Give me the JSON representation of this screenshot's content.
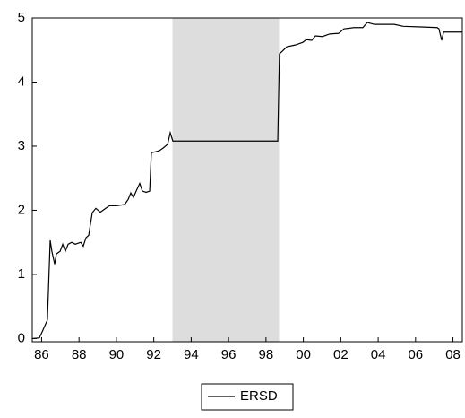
{
  "chart_data": {
    "type": "line",
    "series": [
      {
        "name": "ERSD",
        "color": "#000000",
        "x": [
          1985.5,
          1985.88,
          1986.07,
          1986.31,
          1986.46,
          1986.55,
          1986.7,
          1986.79,
          1986.99,
          1987.13,
          1987.27,
          1987.42,
          1987.61,
          1987.8,
          1988.09,
          1988.23,
          1988.37,
          1988.52,
          1988.61,
          1988.71,
          1988.9,
          1989.14,
          1989.38,
          1989.62,
          1990.0,
          1990.44,
          1990.63,
          1990.77,
          1990.91,
          1991.06,
          1991.25,
          1991.39,
          1991.59,
          1991.78,
          1991.87,
          1992.06,
          1992.3,
          1992.5,
          1992.74,
          1992.88,
          1993.02,
          1998.63,
          1998.72,
          1998.87,
          1999.11,
          1999.59,
          1999.97,
          2000.16,
          2000.45,
          2000.64,
          2001.02,
          2001.41,
          2001.89,
          2002.17,
          2002.7,
          2003.18,
          2003.42,
          2003.8,
          2004.86,
          2005.34,
          2006.3,
          2007.16,
          2007.25,
          2007.4,
          2007.5,
          2008.5
        ],
        "values": [
          0.0,
          0.01,
          0.13,
          0.29,
          1.53,
          1.36,
          1.16,
          1.32,
          1.36,
          1.47,
          1.36,
          1.47,
          1.5,
          1.47,
          1.5,
          1.44,
          1.57,
          1.61,
          1.78,
          1.96,
          2.03,
          1.97,
          2.02,
          2.07,
          2.07,
          2.09,
          2.17,
          2.27,
          2.2,
          2.3,
          2.42,
          2.3,
          2.28,
          2.3,
          2.9,
          2.91,
          2.93,
          2.97,
          3.03,
          3.21,
          3.08,
          3.08,
          4.44,
          4.48,
          4.55,
          4.58,
          4.62,
          4.66,
          4.65,
          4.72,
          4.71,
          4.75,
          4.76,
          4.83,
          4.85,
          4.85,
          4.93,
          4.9,
          4.9,
          4.87,
          4.86,
          4.85,
          4.83,
          4.65,
          4.78,
          4.78
        ]
      }
    ],
    "shaded_regions": [
      [
        1993.0,
        1998.7
      ]
    ],
    "shade_color": "#dddddd",
    "xlim": [
      1985.5,
      2008.5
    ],
    "xticks": [
      {
        "value": 1986,
        "label": "86"
      },
      {
        "value": 1988,
        "label": "88"
      },
      {
        "value": 1990,
        "label": "90"
      },
      {
        "value": 1992,
        "label": "92"
      },
      {
        "value": 1994,
        "label": "94"
      },
      {
        "value": 1996,
        "label": "96"
      },
      {
        "value": 1998,
        "label": "98"
      },
      {
        "value": 2000,
        "label": "00"
      },
      {
        "value": 2002,
        "label": "02"
      },
      {
        "value": 2004,
        "label": "04"
      },
      {
        "value": 2006,
        "label": "06"
      },
      {
        "value": 2008,
        "label": "08"
      }
    ],
    "ylim": [
      -0.05,
      5
    ],
    "yticks": [
      0,
      1,
      2,
      3,
      4,
      5
    ],
    "grid": false,
    "legend": "bottom"
  }
}
